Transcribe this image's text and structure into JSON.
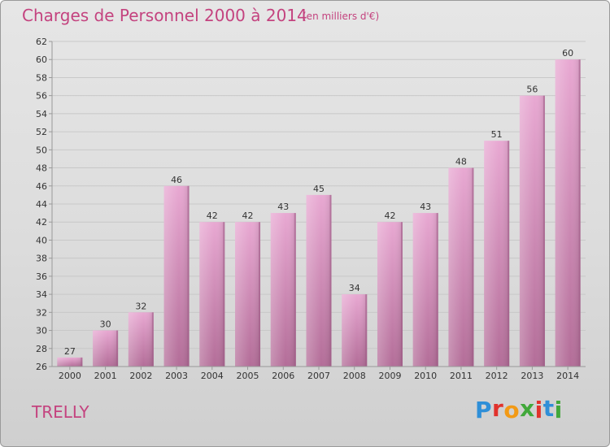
{
  "header": {
    "title": "Charges de Personnel 2000 à 2014",
    "subtitle": "(en milliers d'€)"
  },
  "footer": {
    "place": "TRELLY",
    "logo_text": "Proxiti",
    "logo_colors": [
      "#2f8fd8",
      "#e1322c",
      "#f29a16",
      "#41a83a",
      "#e1322c",
      "#2f8fd8",
      "#41a83a"
    ]
  },
  "colors": {
    "bar_top": "#e8a8d2",
    "bar_bottom": "#b36d98",
    "bar_shade": "#a35f8a",
    "grid": "#c8c8c8",
    "axis": "#999999",
    "text_accent": "#c4437f"
  },
  "chart_data": {
    "type": "bar",
    "categories": [
      "2000",
      "2001",
      "2002",
      "2003",
      "2004",
      "2005",
      "2006",
      "2007",
      "2008",
      "2009",
      "2010",
      "2011",
      "2012",
      "2013",
      "2014"
    ],
    "values": [
      27,
      30,
      32,
      46,
      42,
      42,
      43,
      45,
      34,
      42,
      43,
      48,
      51,
      56,
      60
    ],
    "title": "Charges de Personnel 2000 à 2014",
    "subtitle": "(en milliers d'€)",
    "xlabel": "",
    "ylabel": "",
    "ylim": [
      26,
      62
    ],
    "yticks": [
      26,
      28,
      30,
      32,
      34,
      36,
      38,
      40,
      42,
      44,
      46,
      48,
      50,
      52,
      54,
      56,
      58,
      60,
      62
    ],
    "grid": true,
    "legend": "none"
  }
}
